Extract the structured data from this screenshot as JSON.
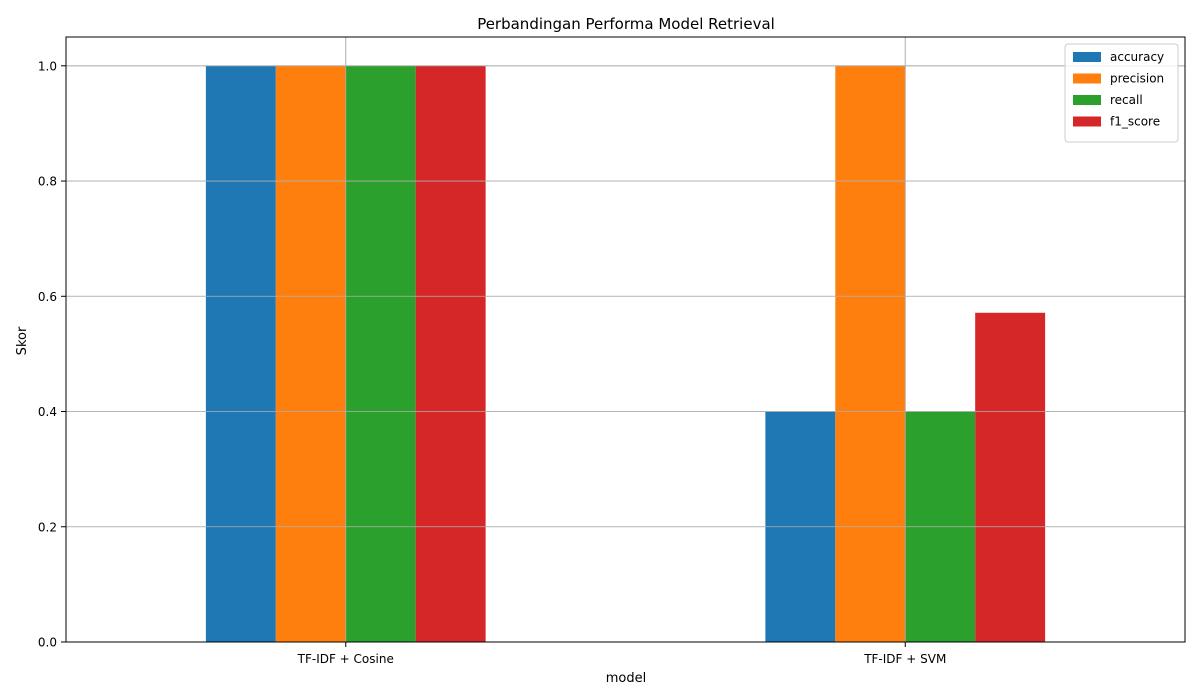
{
  "chart_data": {
    "type": "bar",
    "title": "Perbandingan Performa Model Retrieval",
    "xlabel": "model",
    "ylabel": "Skor",
    "categories": [
      "TF-IDF + Cosine",
      "TF-IDF + SVM"
    ],
    "series": [
      {
        "name": "accuracy",
        "color": "#1f77b4",
        "values": [
          1.0,
          0.4
        ]
      },
      {
        "name": "precision",
        "color": "#ff7f0e",
        "values": [
          1.0,
          1.0
        ]
      },
      {
        "name": "recall",
        "color": "#2ca02c",
        "values": [
          1.0,
          0.4
        ]
      },
      {
        "name": "f1_score",
        "color": "#d62728",
        "values": [
          1.0,
          0.5714
        ]
      }
    ],
    "ylim": [
      0,
      1.05
    ],
    "yticks": [
      0.0,
      0.2,
      0.4,
      0.6,
      0.8,
      1.0
    ],
    "ytick_labels": [
      "0.0",
      "0.2",
      "0.4",
      "0.6",
      "0.8",
      "1.0"
    ],
    "grid": true,
    "legend_position": "top-right"
  }
}
